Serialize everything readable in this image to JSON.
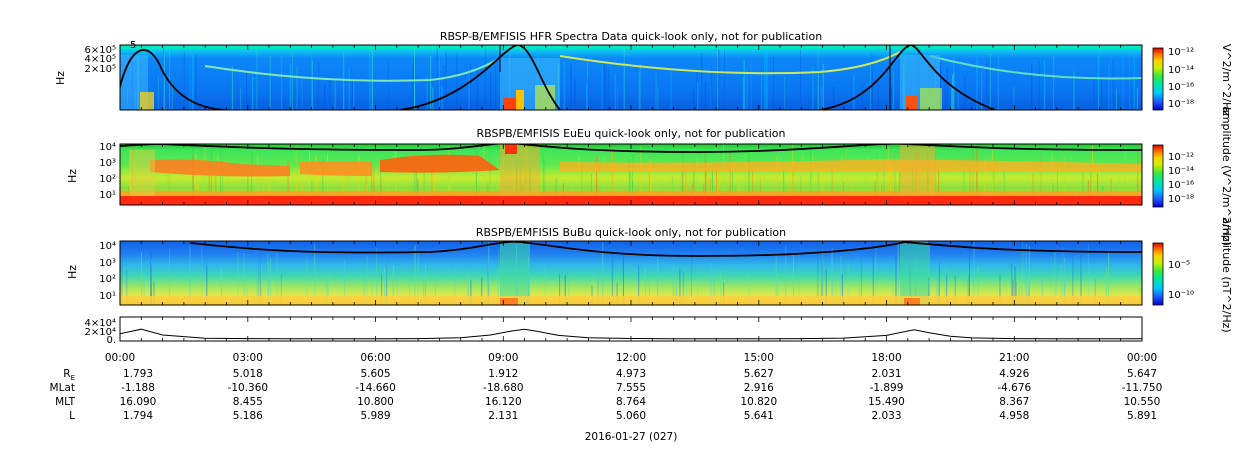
{
  "chart_data": [
    {
      "type": "heatmap",
      "title": "RBSP-B/EMFISIS  HFR Spectra Data quick-look only, not for publication",
      "ylabel": "Hz",
      "yscale": "log",
      "ylim": [
        10000,
        600000
      ],
      "ytick_labels": [
        "6×10⁵",
        "4×10⁵",
        "2×10⁵"
      ],
      "colorbar_label": "V^2/m^2/Hz",
      "colorbar_ticks": [
        "10⁻¹²",
        "10⁻¹⁴",
        "10⁻¹⁶",
        "10⁻¹⁸"
      ],
      "colorbar_range_exponent": [
        -18.5,
        -11.5
      ],
      "overlay_line": "black",
      "colors": {
        "background": "#0a7ff5",
        "band": "#00e6c8",
        "emission": "#ffd000"
      }
    },
    {
      "type": "heatmap",
      "title": "RBSPB/EMFISIS  EuEu quick-look only, not for publication",
      "ylabel": "Hz",
      "yscale": "log",
      "ylim": [
        2,
        12000
      ],
      "ytick_labels": [
        "10⁴",
        "10³",
        "10²",
        "10¹"
      ],
      "colorbar_label": "amplitude (V^2/m^2/Hz)",
      "colorbar_ticks": [
        "10⁻¹²",
        "10⁻¹⁴",
        "10⁻¹⁶",
        "10⁻¹⁸"
      ],
      "colorbar_range_exponent": [
        -19,
        -11
      ],
      "overlay_line": "black",
      "colors": {
        "background": "#39e65a",
        "band": "#ffa020",
        "floor": "#ff3010"
      }
    },
    {
      "type": "heatmap",
      "title": "RBSPB/EMFISIS  BuBu quick-look only, not for publication",
      "ylabel": "Hz",
      "yscale": "log",
      "ylim": [
        2,
        12000
      ],
      "ytick_labels": [
        "10⁴",
        "10³",
        "10²",
        "10¹"
      ],
      "colorbar_label": "amplitude (nT^2/Hz)",
      "colorbar_ticks": [
        "10⁻⁵",
        "10⁻¹⁰"
      ],
      "colorbar_range_exponent": [
        -12,
        -2
      ],
      "overlay_line": "black",
      "colors": {
        "background": "#2878f0",
        "mid": "#3cd0c8",
        "low": "#ffe040"
      }
    },
    {
      "type": "line",
      "ylabel": "",
      "ylim": [
        0,
        45000
      ],
      "ytick_labels": [
        "4×10⁴",
        "2×10⁴",
        "0."
      ],
      "x_hours": [
        0,
        0.5,
        1,
        2,
        3,
        4,
        5,
        6,
        7,
        8,
        8.7,
        9.2,
        9.5,
        9.8,
        10.3,
        11,
        12,
        13,
        14,
        15,
        16,
        17,
        18,
        18.4,
        18.65,
        19,
        19.5,
        20,
        21,
        22,
        23,
        24
      ],
      "values": [
        12000,
        22000,
        9000,
        1500,
        800,
        600,
        500,
        500,
        900,
        3000,
        9000,
        18000,
        22000,
        17000,
        8000,
        3000,
        1200,
        700,
        600,
        600,
        800,
        2000,
        8000,
        16000,
        21000,
        14000,
        6000,
        2500,
        1000,
        700,
        600,
        600
      ]
    }
  ],
  "x_axis": {
    "tick_labels": [
      "00:00",
      "03:00",
      "06:00",
      "09:00",
      "12:00",
      "15:00",
      "18:00",
      "21:00",
      "00:00"
    ],
    "date_label": "2016-01-27 (027)"
  },
  "ephemeris": {
    "rows": [
      {
        "label": "R",
        "sub": "E",
        "values": [
          "1.793",
          "5.018",
          "5.605",
          "1.912",
          "4.973",
          "5.627",
          "2.031",
          "4.926",
          "5.647"
        ]
      },
      {
        "label": "MLat",
        "sub": "",
        "values": [
          "-1.188",
          "-10.360",
          "-14.660",
          "-18.680",
          "7.555",
          "2.916",
          "-1.899",
          "-4.676",
          "-11.750"
        ]
      },
      {
        "label": "MLT",
        "sub": "",
        "values": [
          "16.090",
          "8.455",
          "10.800",
          "16.120",
          "8.764",
          "10.820",
          "15.490",
          "8.367",
          "10.550"
        ]
      },
      {
        "label": "L",
        "sub": "",
        "values": [
          "1.794",
          "5.186",
          "5.989",
          "2.131",
          "5.060",
          "5.641",
          "2.033",
          "4.958",
          "5.891"
        ]
      }
    ]
  }
}
